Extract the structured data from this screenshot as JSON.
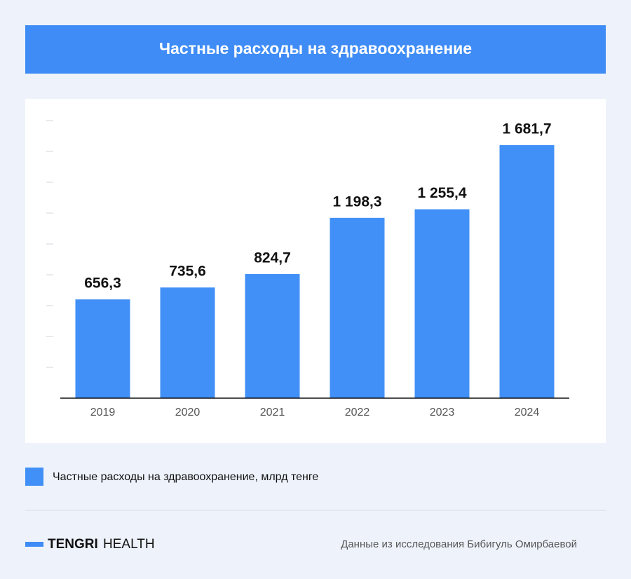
{
  "chart_data": {
    "type": "bar",
    "title": "Частные расходы на здравоохранение",
    "categories": [
      "2019",
      "2020",
      "2021",
      "2022",
      "2023",
      "2024"
    ],
    "values": [
      656.3,
      735.6,
      824.7,
      1198.3,
      1255.4,
      1681.7
    ],
    "value_labels": [
      "656,3",
      "735,6",
      "824,7",
      "1 198,3",
      "1 255,4",
      "1 681,7"
    ],
    "color": "#4190f7",
    "ylim": [
      0,
      1845
    ],
    "legend": "Частные расходы на здравоохранение, млрд тенге"
  },
  "footer": {
    "brand_bold": "TENGRI",
    "brand_light": "HEALTH",
    "source": "Данные из исследования Бибигуль Омирбаевой"
  }
}
